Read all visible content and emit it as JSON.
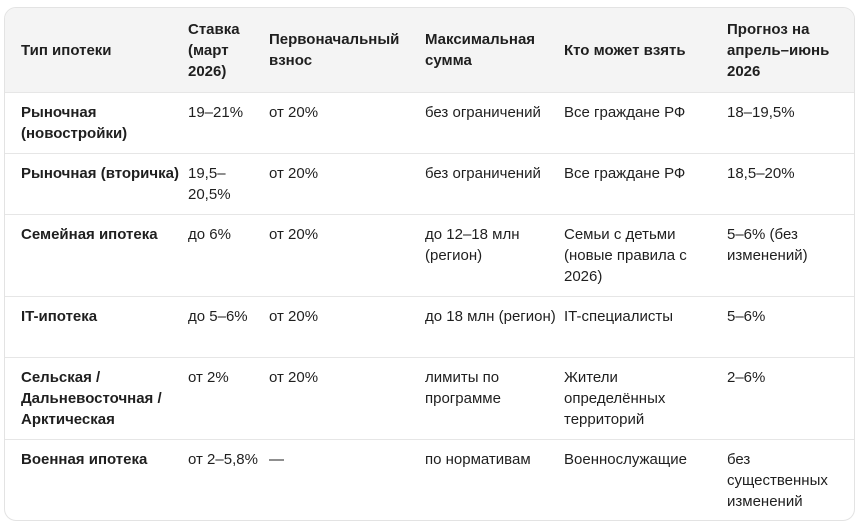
{
  "columns": [
    "Тип ипотеки",
    "Ставка (март 2026)",
    "Первоначальный взнос",
    "Максимальная сумма",
    "Кто может взять",
    "Прогноз на апрель–июнь 2026"
  ],
  "rows": [
    [
      "Рыночная (новостройки)",
      "19–21%",
      "от 20%",
      "без ограничений",
      "Все граждане РФ",
      "18–19,5%"
    ],
    [
      "Рыночная (вторичка)",
      "19,5–20,5%",
      "от 20%",
      "без ограничений",
      "Все граждане РФ",
      "18,5–20%"
    ],
    [
      "Семейная ипотека",
      "до 6%",
      "от 20%",
      "до 12–18 млн (регион)",
      "Семьи с детьми (новые правила с 2026)",
      "5–6% (без изменений)"
    ],
    [
      "IT-ипотека",
      "до 5–6%",
      "от 20%",
      "до 18 млн (регион)",
      "IT-специалисты",
      "5–6%"
    ],
    [
      "Сельская / Дальневосточная / Арктическая",
      "от 2%",
      "от 20%",
      "лимиты по программе",
      "Жители определённых территорий",
      "2–6%"
    ],
    [
      "Военная ипотека",
      "от 2–5,8%",
      "—",
      "по нормативам",
      "Военнослужащие",
      "без существенных изменений"
    ]
  ]
}
